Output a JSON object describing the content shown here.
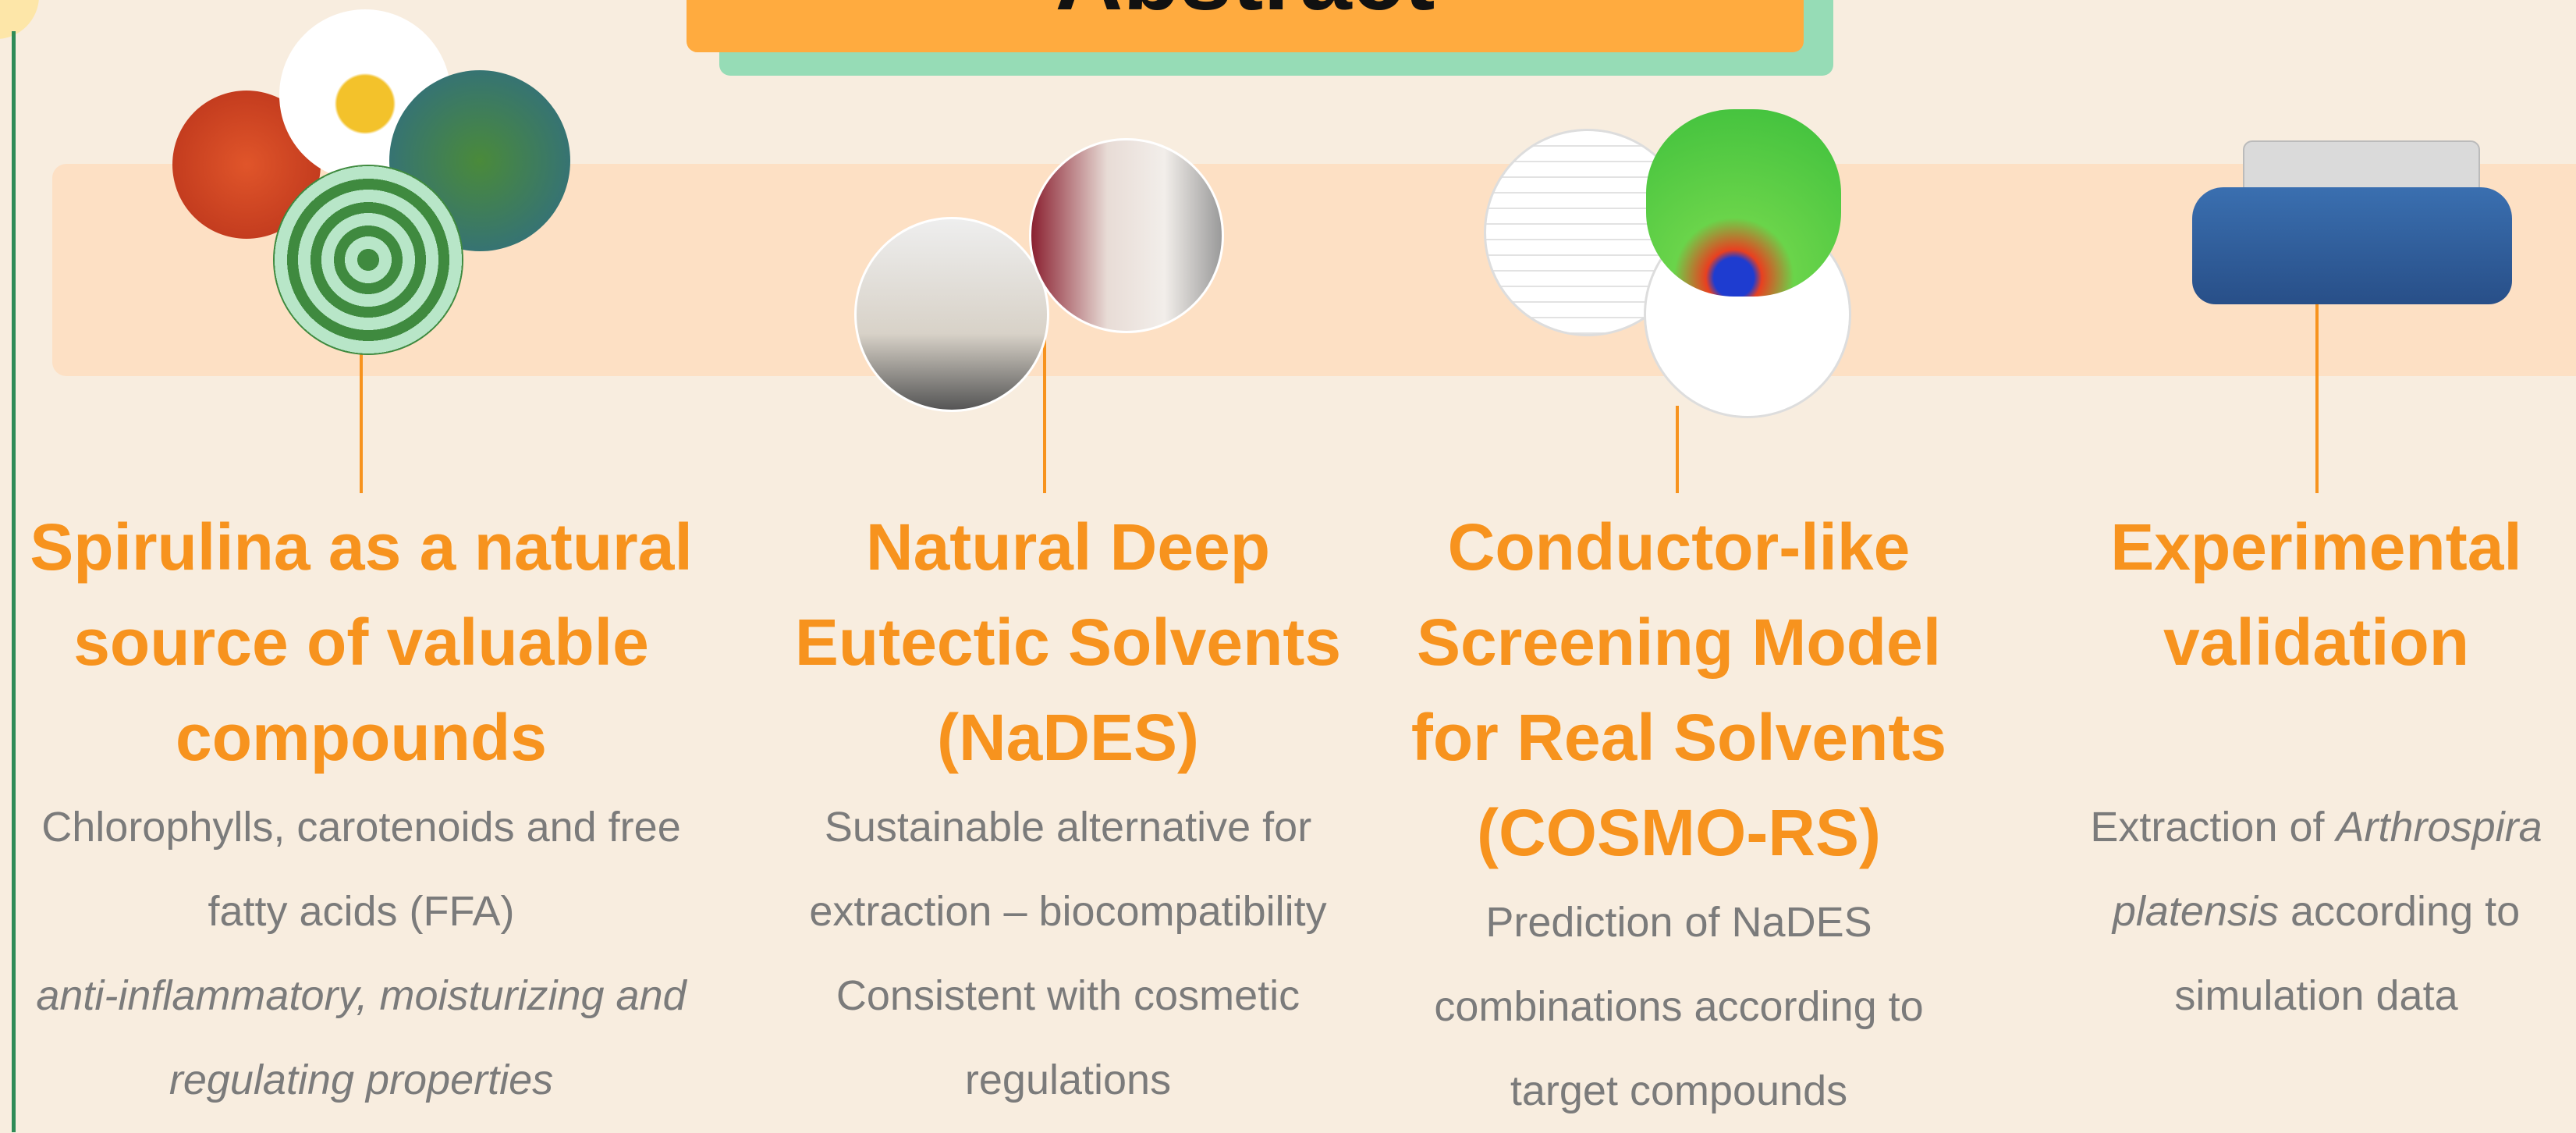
{
  "header": {
    "title": "Abstract"
  },
  "columns": [
    {
      "heading": "Spirulina as a natural source of valuable compounds",
      "description": [
        [
          {
            "text": "Chlorophylls, carotenoids and free fatty acids (FFA)",
            "italic": false
          }
        ],
        [
          {
            "text": "anti-inflammatory, moisturizing and regulating properties",
            "italic": true
          }
        ]
      ]
    },
    {
      "heading": "Natural Deep Eutectic Solvents (NaDES)",
      "description": [
        [
          {
            "text": "Sustainable alternative for extraction – biocompatibility",
            "italic": false
          }
        ],
        [
          {
            "text": "Consistent with cosmetic regulations",
            "italic": false
          }
        ]
      ]
    },
    {
      "heading": "Conductor-like Screening Model for Real Solvents (COSMO-RS)",
      "description": [
        [
          {
            "text": "Prediction of NaDES combinations according to target compounds",
            "italic": false
          }
        ]
      ]
    },
    {
      "heading": "Experimental validation",
      "description": [
        [
          {
            "text": "Extraction of ",
            "italic": false
          },
          {
            "text": "Arthrospira platensis",
            "italic": true
          },
          {
            "text": " according to simulation data",
            "italic": false
          }
        ]
      ]
    }
  ]
}
